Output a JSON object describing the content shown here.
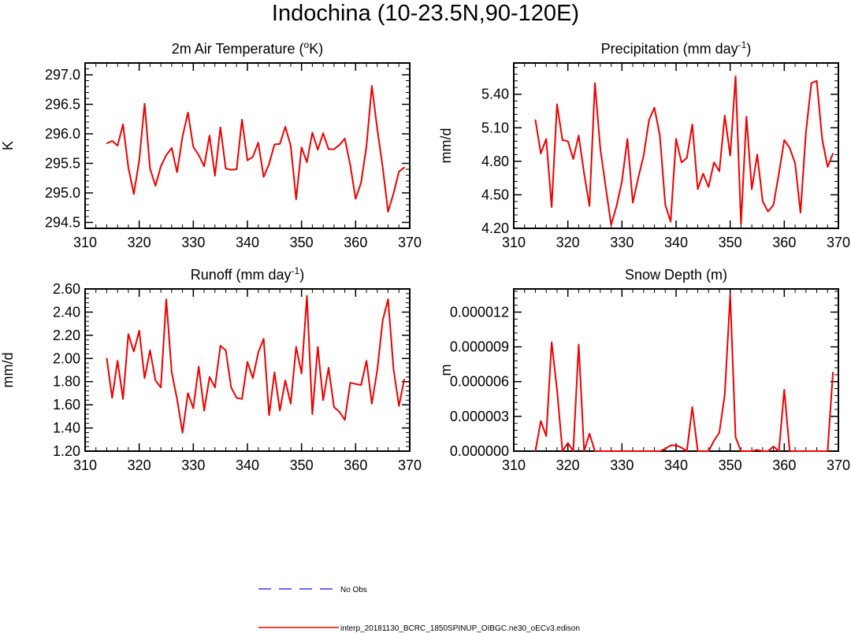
{
  "title": "Indochina (10-23.5N,90-120E)",
  "series_color": "#ee0000",
  "legend": [
    {
      "label": "No Obs",
      "color": "#3333ff",
      "style": "dashed"
    },
    {
      "label": "interp_20181130_BCRC_1850SPINUP_OIBGC.ne30_oECv3.edison",
      "color": "#ee0000",
      "style": "solid"
    }
  ],
  "chart_data": [
    {
      "type": "line",
      "title": "2m Air Temperature (",
      "title_sup": "o",
      "title_end": "K)",
      "ylabel": "K",
      "xlim": [
        310,
        370
      ],
      "xticks": [
        310,
        320,
        330,
        340,
        350,
        360,
        370
      ],
      "ylim": [
        294.4,
        297.2
      ],
      "yticks": [
        294.5,
        295.0,
        295.5,
        296.0,
        296.5,
        297.0
      ],
      "ytick_labels": [
        "294.5",
        "295.0",
        "295.5",
        "296.0",
        "296.5",
        "297.0"
      ],
      "x": [
        314,
        315,
        316,
        317,
        318,
        319,
        320,
        321,
        322,
        323,
        324,
        325,
        326,
        327,
        328,
        329,
        330,
        331,
        332,
        333,
        334,
        335,
        336,
        337,
        338,
        339,
        340,
        341,
        342,
        343,
        344,
        345,
        346,
        347,
        348,
        349,
        350,
        351,
        352,
        353,
        354,
        355,
        356,
        357,
        358,
        359,
        360,
        361,
        362,
        363,
        364,
        365,
        366,
        367,
        368,
        369
      ],
      "values": [
        295.84,
        295.88,
        295.8,
        296.16,
        295.43,
        294.98,
        295.55,
        296.51,
        295.41,
        295.12,
        295.45,
        295.64,
        295.76,
        295.35,
        295.95,
        296.36,
        295.78,
        295.64,
        295.45,
        295.97,
        295.29,
        296.11,
        295.41,
        295.39,
        295.4,
        296.24,
        295.55,
        295.61,
        295.85,
        295.27,
        295.49,
        295.82,
        295.83,
        296.12,
        295.8,
        294.89,
        295.77,
        295.52,
        296.02,
        295.73,
        296.01,
        295.74,
        295.74,
        295.81,
        295.92,
        295.47,
        294.9,
        295.17,
        295.79,
        296.81,
        296.08,
        295.43,
        294.68,
        294.99,
        295.36,
        295.43
      ]
    },
    {
      "type": "line",
      "title": "Precipitation (mm day",
      "title_sup": "-1",
      "title_end": ")",
      "ylabel": "mm/d",
      "xlim": [
        310,
        370
      ],
      "xticks": [
        310,
        320,
        330,
        340,
        350,
        360,
        370
      ],
      "ylim": [
        4.2,
        5.68
      ],
      "yticks": [
        4.2,
        4.5,
        4.8,
        5.1,
        5.4
      ],
      "ytick_labels": [
        "4.20",
        "4.50",
        "4.80",
        "5.10",
        "5.40"
      ],
      "x": [
        314,
        315,
        316,
        317,
        318,
        319,
        320,
        321,
        322,
        323,
        324,
        325,
        326,
        327,
        328,
        329,
        330,
        331,
        332,
        333,
        334,
        335,
        336,
        337,
        338,
        339,
        340,
        341,
        342,
        343,
        344,
        345,
        346,
        347,
        348,
        349,
        350,
        351,
        352,
        353,
        354,
        355,
        356,
        357,
        358,
        359,
        360,
        361,
        362,
        363,
        364,
        365,
        366,
        367,
        368,
        369
      ],
      "values": [
        5.17,
        4.87,
        5.0,
        4.39,
        5.31,
        4.99,
        4.98,
        4.82,
        5.03,
        4.69,
        4.4,
        5.5,
        4.91,
        4.57,
        4.23,
        4.4,
        4.62,
        5.0,
        4.43,
        4.65,
        4.85,
        5.17,
        5.28,
        5.03,
        4.41,
        4.26,
        5.0,
        4.79,
        4.83,
        5.13,
        4.55,
        4.69,
        4.57,
        4.79,
        4.71,
        5.21,
        4.85,
        5.56,
        4.24,
        5.2,
        4.55,
        4.86,
        4.44,
        4.35,
        4.41,
        4.69,
        4.99,
        4.92,
        4.78,
        4.34,
        5.06,
        5.5,
        5.52,
        5.0,
        4.75,
        4.87
      ]
    },
    {
      "type": "line",
      "title": "Runoff (mm day",
      "title_sup": "-1",
      "title_end": ")",
      "ylabel": "mm/d",
      "xlim": [
        310,
        370
      ],
      "xticks": [
        310,
        320,
        330,
        340,
        350,
        360,
        370
      ],
      "ylim": [
        1.2,
        2.6
      ],
      "yticks": [
        1.2,
        1.4,
        1.6,
        1.8,
        2.0,
        2.2,
        2.4,
        2.6
      ],
      "ytick_labels": [
        "1.20",
        "1.40",
        "1.60",
        "1.80",
        "2.00",
        "2.20",
        "2.40",
        "2.60"
      ],
      "x": [
        314,
        315,
        316,
        317,
        318,
        319,
        320,
        321,
        322,
        323,
        324,
        325,
        326,
        327,
        328,
        329,
        330,
        331,
        332,
        333,
        334,
        335,
        336,
        337,
        338,
        339,
        340,
        341,
        342,
        343,
        344,
        345,
        346,
        347,
        348,
        349,
        350,
        351,
        352,
        353,
        354,
        355,
        356,
        357,
        358,
        359,
        360,
        361,
        362,
        363,
        364,
        365,
        366,
        367,
        368,
        369
      ],
      "values": [
        2.0,
        1.66,
        1.98,
        1.65,
        2.21,
        2.06,
        2.24,
        1.83,
        2.07,
        1.81,
        1.75,
        2.51,
        1.88,
        1.65,
        1.36,
        1.7,
        1.57,
        1.93,
        1.55,
        1.84,
        1.75,
        2.11,
        2.07,
        1.75,
        1.66,
        1.65,
        1.97,
        1.83,
        2.05,
        2.17,
        1.51,
        1.88,
        1.55,
        1.81,
        1.61,
        2.1,
        1.87,
        2.54,
        1.52,
        2.1,
        1.64,
        1.92,
        1.58,
        1.54,
        1.47,
        1.79,
        1.78,
        1.77,
        1.98,
        1.61,
        1.9,
        2.33,
        2.51,
        1.91,
        1.59,
        1.82
      ]
    },
    {
      "type": "line",
      "title": "Snow Depth (m)",
      "title_sup": "",
      "title_end": "",
      "ylabel": "m",
      "xlim": [
        310,
        370
      ],
      "xticks": [
        310,
        320,
        330,
        340,
        350,
        360,
        370
      ],
      "ylim": [
        0,
        1.4e-05
      ],
      "yticks": [
        0,
        3e-06,
        6e-06,
        9e-06,
        1.2e-05
      ],
      "ytick_labels": [
        "0.000000",
        "0.000003",
        "0.000006",
        "0.000009",
        "0.000012"
      ],
      "x": [
        314,
        315,
        316,
        317,
        318,
        319,
        320,
        321,
        322,
        323,
        324,
        325,
        326,
        327,
        328,
        329,
        330,
        331,
        332,
        333,
        334,
        335,
        336,
        337,
        338,
        339,
        340,
        341,
        342,
        343,
        344,
        345,
        346,
        347,
        348,
        349,
        350,
        351,
        352,
        353,
        354,
        355,
        356,
        357,
        358,
        359,
        360,
        361,
        362,
        363,
        364,
        365,
        366,
        367,
        368,
        369
      ],
      "values": [
        0,
        2.6e-06,
        1.3e-06,
        9.4e-06,
        5.3e-06,
        0,
        7e-07,
        0,
        9.2e-06,
        0,
        1.5e-06,
        0,
        0,
        0,
        0,
        0,
        0,
        0,
        0,
        0,
        0,
        0,
        0,
        0,
        2e-07,
        5e-07,
        5e-07,
        3e-07,
        0,
        3.8e-06,
        0,
        0,
        0,
        9e-07,
        1.6e-06,
        4.9e-06,
        1.35e-05,
        1.2e-06,
        0,
        0,
        0,
        1e-07,
        0,
        0,
        4e-07,
        0,
        5.3e-06,
        0,
        0,
        0,
        0,
        0,
        0,
        0,
        0,
        6.8e-06
      ]
    }
  ]
}
